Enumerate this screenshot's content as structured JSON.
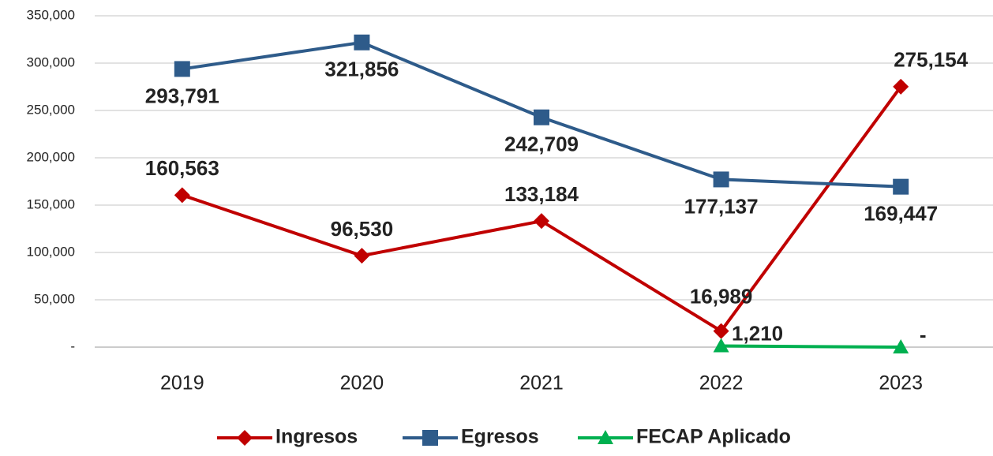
{
  "chart_data": {
    "type": "line",
    "categories": [
      "2019",
      "2020",
      "2021",
      "2022",
      "2023"
    ],
    "series": [
      {
        "name": "Ingresos",
        "color": "#c00000",
        "marker": "diamond",
        "values": [
          160563,
          96530,
          133184,
          16989,
          275154
        ],
        "value_labels": [
          "160,563",
          "96,530",
          "133,184",
          "16,989",
          "275,154"
        ]
      },
      {
        "name": "Egresos",
        "color": "#2e5b8a",
        "marker": "square",
        "values": [
          293791,
          321856,
          242709,
          177137,
          169447
        ],
        "value_labels": [
          "293,791",
          "321,856",
          "242,709",
          "177,137",
          "169,447"
        ]
      },
      {
        "name": "FECAP Aplicado",
        "color": "#00b050",
        "marker": "triangle",
        "values": [
          null,
          null,
          null,
          1210,
          0
        ],
        "value_labels": [
          null,
          null,
          null,
          "1,210",
          "-"
        ]
      }
    ],
    "ylim": [
      0,
      350000
    ],
    "yticks": [
      {
        "value": 0,
        "label": "-"
      },
      {
        "value": 50000,
        "label": "50,000"
      },
      {
        "value": 100000,
        "label": "100,000"
      },
      {
        "value": 150000,
        "label": "150,000"
      },
      {
        "value": 200000,
        "label": "200,000"
      },
      {
        "value": 250000,
        "label": "250,000"
      },
      {
        "value": 300000,
        "label": "300,000"
      },
      {
        "value": 350000,
        "label": "350,000"
      }
    ],
    "grid": true,
    "legend": "bottom"
  }
}
